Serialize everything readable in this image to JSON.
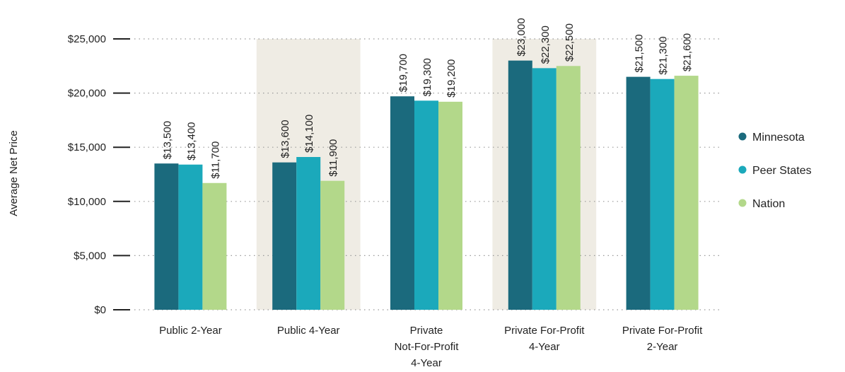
{
  "chart_data": {
    "type": "bar",
    "y_label": "Average Net Price",
    "categories": [
      "Public 2-Year",
      "Public 4-Year",
      "Private\nNot-For-Profit\n4-Year",
      "Private For-Profit\n4-Year",
      "Private For-Profit\n2-Year"
    ],
    "series": [
      {
        "name": "Minnesota",
        "color": "#1b6a7d",
        "values": [
          13500,
          13600,
          19700,
          23000,
          21500
        ],
        "value_labels": [
          "$13,500",
          "$13,600",
          "$19,700",
          "$23,000",
          "$21,500"
        ]
      },
      {
        "name": "Peer States",
        "color": "#1ba9bb",
        "values": [
          13400,
          14100,
          19300,
          22300,
          21300
        ],
        "value_labels": [
          "$13,400",
          "$14,100",
          "$19,300",
          "$22,300",
          "$21,300"
        ]
      },
      {
        "name": "Nation",
        "color": "#b3d88a",
        "values": [
          11700,
          11900,
          19200,
          22500,
          21600
        ],
        "value_labels": [
          "$11,700",
          "$11,900",
          "$19,200",
          "$22,500",
          "$21,600"
        ]
      }
    ],
    "ylim": [
      0,
      25000
    ],
    "yticks": [
      {
        "value": 0,
        "label": "$0"
      },
      {
        "value": 5000,
        "label": "$5,000"
      },
      {
        "value": 10000,
        "label": "$10,000"
      },
      {
        "value": 15000,
        "label": "$15,000"
      },
      {
        "value": 20000,
        "label": "$20,000"
      },
      {
        "value": 25000,
        "label": "$25,000"
      }
    ],
    "grid": true,
    "legend": "right"
  }
}
